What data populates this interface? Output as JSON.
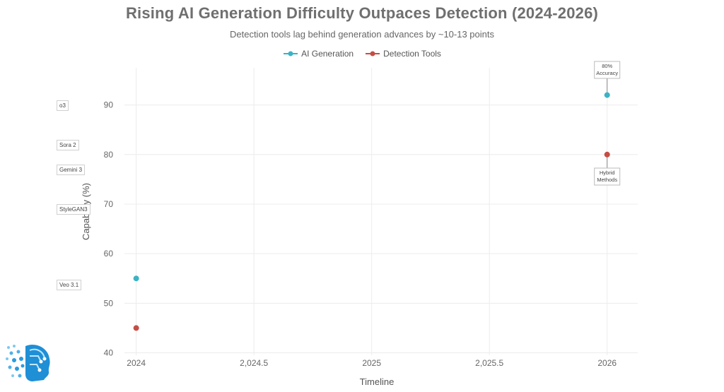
{
  "chart_data": {
    "type": "scatter",
    "title": "Rising AI Generation Difficulty Outpaces Detection (2024-2026)",
    "subtitle": "Detection tools lag behind generation advances by ~10-13 points",
    "xlabel": "Timeline",
    "ylabel": "Capability (%)",
    "xlim": [
      2023.95,
      2026.13
    ],
    "ylim": [
      39.5,
      97.5
    ],
    "x_ticks": [
      {
        "value": 2024,
        "label": "2024"
      },
      {
        "value": 2024.5,
        "label": "2,024.5"
      },
      {
        "value": 2025,
        "label": "2025"
      },
      {
        "value": 2025.5,
        "label": "2,025.5"
      },
      {
        "value": 2026,
        "label": "2026"
      }
    ],
    "y_ticks": [
      40,
      50,
      60,
      70,
      80,
      90
    ],
    "grid": true,
    "legend_position": "top-center",
    "series": [
      {
        "name": "AI Generation",
        "color": "#3bb3c3",
        "x": [
          2024,
          2026
        ],
        "y": [
          55,
          92
        ]
      },
      {
        "name": "Detection Tools",
        "color": "#c44e45",
        "x": [
          2024,
          2026
        ],
        "y": [
          45,
          80
        ]
      }
    ],
    "annotations": [
      {
        "lines": [
          "80%",
          "Accuracy"
        ],
        "x": 2026,
        "y": 92,
        "position": "above"
      },
      {
        "lines": [
          "Hybrid",
          "Methods"
        ],
        "x": 2026,
        "y": 80,
        "position": "below"
      }
    ],
    "side_labels": [
      {
        "text": "o3",
        "y": 90
      },
      {
        "text": "Sora 2",
        "y": 82
      },
      {
        "text": "Gemini 3",
        "y": 77
      },
      {
        "text": "StyleGAN3",
        "y": 69
      },
      {
        "text": "Veo 3.1",
        "y": 53.7
      }
    ]
  }
}
